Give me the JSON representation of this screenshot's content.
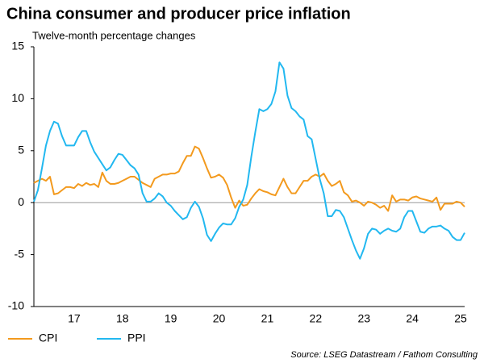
{
  "chart_data": {
    "type": "line",
    "title": "China consumer and producer price inflation",
    "subtitle": "Twelve-month percentage changes",
    "source": "Source: LSEG Datastream / Fathom Consulting",
    "categories": [
      null,
      null,
      null,
      null,
      null,
      null,
      null,
      null,
      null,
      null,
      "17",
      null,
      null,
      null,
      null,
      null,
      null,
      null,
      null,
      null,
      null,
      null,
      "18",
      null,
      null,
      null,
      null,
      null,
      null,
      null,
      null,
      null,
      null,
      null,
      "19",
      null,
      null,
      null,
      null,
      null,
      null,
      null,
      null,
      null,
      null,
      null,
      "20",
      null,
      null,
      null,
      null,
      null,
      null,
      null,
      null,
      null,
      null,
      null,
      "21",
      null,
      null,
      null,
      null,
      null,
      null,
      null,
      null,
      null,
      null,
      null,
      "22",
      null,
      null,
      null,
      null,
      null,
      null,
      null,
      null,
      null,
      null,
      null,
      "23",
      null,
      null,
      null,
      null,
      null,
      null,
      null,
      null,
      null,
      null,
      null,
      "24",
      null,
      null,
      null,
      null,
      null,
      null,
      null,
      null,
      null,
      null,
      null,
      "25",
      null
    ],
    "series": [
      {
        "name": "CPI",
        "color": "#f39a1e",
        "values": [
          1.9,
          2.1,
          2.3,
          2.1,
          2.5,
          0.8,
          0.9,
          1.2,
          1.5,
          1.5,
          1.4,
          1.8,
          1.6,
          1.9,
          1.7,
          1.8,
          1.5,
          2.9,
          2.1,
          1.8,
          1.8,
          1.9,
          2.1,
          2.3,
          2.5,
          2.5,
          2.2,
          1.9,
          1.7,
          1.5,
          2.3,
          2.5,
          2.7,
          2.7,
          2.8,
          2.8,
          3.0,
          3.8,
          4.5,
          4.5,
          5.4,
          5.2,
          4.3,
          3.3,
          2.4,
          2.5,
          2.7,
          2.4,
          1.7,
          0.5,
          -0.5,
          0.2,
          -0.3,
          -0.2,
          0.4,
          0.9,
          1.3,
          1.1,
          1.0,
          0.8,
          0.7,
          1.5,
          2.3,
          1.5,
          0.9,
          0.9,
          1.5,
          2.1,
          2.1,
          2.5,
          2.7,
          2.5,
          2.8,
          2.1,
          1.6,
          1.8,
          2.1,
          1.0,
          0.7,
          0.1,
          0.2,
          0.0,
          -0.3,
          0.1,
          0.0,
          -0.2,
          -0.5,
          -0.3,
          -0.8,
          0.7,
          0.1,
          0.3,
          0.3,
          0.2,
          0.5,
          0.6,
          0.4,
          0.3,
          0.2,
          0.1,
          0.5,
          -0.7,
          -0.1,
          -0.1,
          -0.1,
          0.1,
          0.0,
          -0.4
        ]
      },
      {
        "name": "PPI",
        "color": "#22b8f0",
        "values": [
          0.1,
          1.2,
          3.3,
          5.5,
          6.9,
          7.8,
          7.6,
          6.4,
          5.5,
          5.5,
          5.5,
          6.3,
          6.9,
          6.9,
          5.8,
          4.9,
          4.3,
          3.7,
          3.1,
          3.4,
          4.1,
          4.7,
          4.6,
          4.1,
          3.6,
          3.3,
          2.7,
          0.9,
          0.1,
          0.1,
          0.4,
          0.9,
          0.6,
          0.0,
          -0.3,
          -0.8,
          -1.2,
          -1.6,
          -1.4,
          -0.5,
          0.1,
          -0.4,
          -1.5,
          -3.1,
          -3.7,
          -3.0,
          -2.4,
          -2.0,
          -2.1,
          -2.1,
          -1.5,
          -0.4,
          0.3,
          1.7,
          4.4,
          6.8,
          9.0,
          8.8,
          9.0,
          9.5,
          10.7,
          13.5,
          12.9,
          10.3,
          9.1,
          8.8,
          8.3,
          8.0,
          6.4,
          6.1,
          4.2,
          2.3,
          0.9,
          -1.3,
          -1.3,
          -0.7,
          -0.8,
          -1.4,
          -2.5,
          -3.6,
          -4.6,
          -5.4,
          -4.4,
          -3.0,
          -2.5,
          -2.6,
          -3.0,
          -2.7,
          -2.5,
          -2.7,
          -2.8,
          -2.5,
          -1.4,
          -0.8,
          -0.8,
          -1.8,
          -2.8,
          -2.9,
          -2.5,
          -2.3,
          -2.3,
          -2.2,
          -2.5,
          -2.7,
          -3.3,
          -3.6,
          -3.6,
          -2.9
        ]
      }
    ],
    "ylim": [
      -10,
      15
    ],
    "yticks": [
      15,
      10,
      5,
      0,
      -5,
      -10
    ],
    "legend": "bottom-left"
  }
}
